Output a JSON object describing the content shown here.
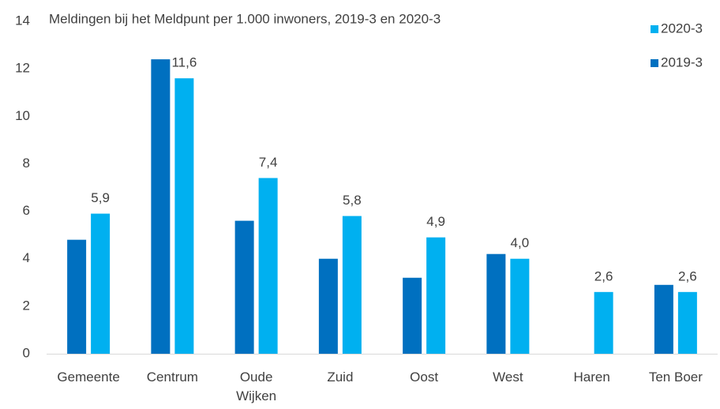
{
  "chart_data": {
    "type": "bar",
    "title": "Meldingen bij het Meldpunt per 1.000 inwoners, 2019-3 en 2020-3",
    "categories": [
      "Gemeente",
      "Centrum",
      "Oude Wijken",
      "Zuid",
      "Oost",
      "West",
      "Haren",
      "Ten Boer"
    ],
    "series": [
      {
        "name": "2019-3",
        "color": "#0070c0",
        "values": [
          4.8,
          12.4,
          5.6,
          4.0,
          3.2,
          4.2,
          null,
          2.9
        ]
      },
      {
        "name": "2020-3",
        "color": "#00b0f0",
        "values": [
          5.9,
          11.6,
          7.4,
          5.8,
          4.9,
          4.0,
          2.6,
          2.6
        ],
        "value_labels": [
          "5,9",
          "11,6",
          "7,4",
          "5,8",
          "4,9",
          "4,0",
          "2,6",
          "2,6"
        ]
      }
    ],
    "ylim": [
      0,
      14
    ],
    "yticks": [
      0,
      2,
      4,
      6,
      8,
      10,
      12,
      14
    ],
    "grid": false,
    "legend": "top-right"
  }
}
